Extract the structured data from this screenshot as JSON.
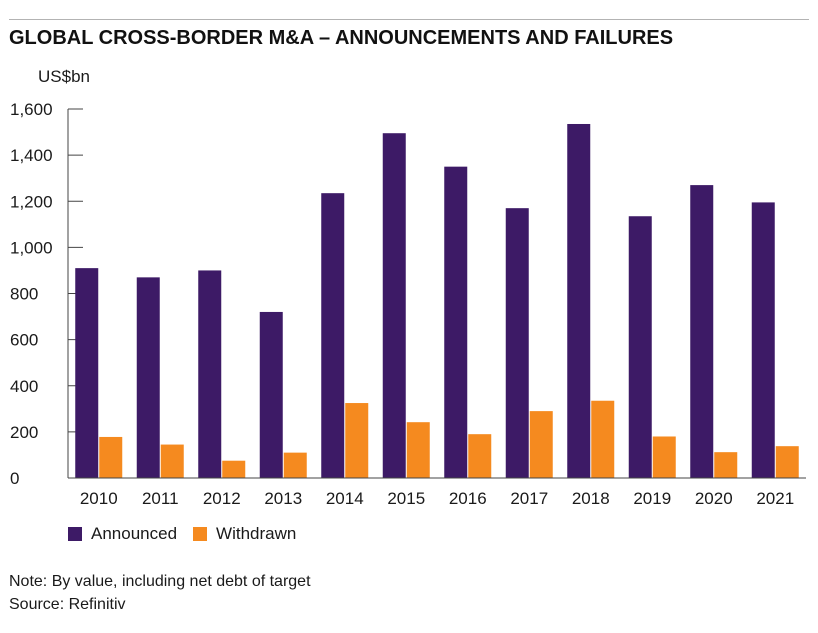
{
  "chart_data": {
    "type": "bar",
    "title": "GLOBAL CROSS-BORDER M&A – ANNOUNCEMENTS AND FAILURES",
    "ylabel": "US$bn",
    "xlabel": "",
    "ylim": [
      0,
      1600
    ],
    "yticks": [
      0,
      200,
      400,
      600,
      800,
      1000,
      1200,
      1400,
      1600
    ],
    "ytick_labels": [
      "0",
      "200",
      "400",
      "600",
      "800",
      "1,000",
      "1,200",
      "1,400",
      "1,600"
    ],
    "categories": [
      "2010",
      "2011",
      "2012",
      "2013",
      "2014",
      "2015",
      "2016",
      "2017",
      "2018",
      "2019",
      "2020",
      "2021"
    ],
    "series": [
      {
        "name": "Announced",
        "color": "#3d1a66",
        "values": [
          910,
          870,
          900,
          720,
          1235,
          1495,
          1350,
          1170,
          1535,
          1135,
          1270,
          1195
        ]
      },
      {
        "name": "Withdrawn",
        "color": "#f58a1f",
        "values": [
          178,
          145,
          75,
          110,
          325,
          242,
          190,
          290,
          335,
          180,
          112,
          138
        ]
      }
    ],
    "legend_position": "bottom-left",
    "grid": false
  },
  "notes": {
    "note": "Note: By value, including net debt of target",
    "source": "Source: Refinitiv"
  }
}
